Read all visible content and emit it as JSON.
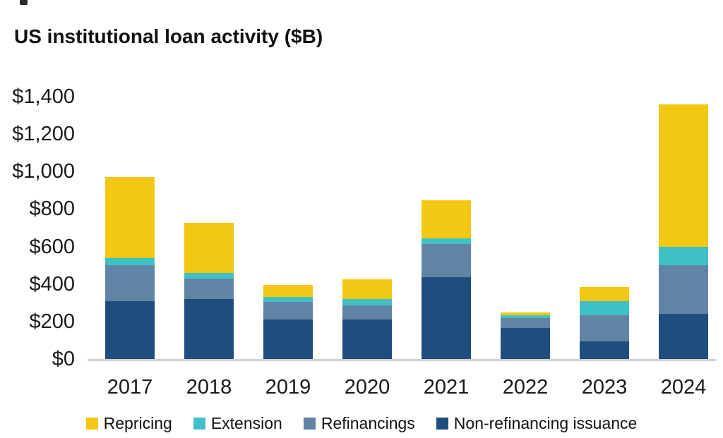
{
  "title": "US institutional loan activity ($B)",
  "colors": {
    "repricing": "#F3C813",
    "extension": "#40C1C8",
    "refinancings": "#6184A5",
    "non_refinancing_issuance": "#1F4E7E",
    "axis_line": "#D2D2D2",
    "text": "#1A1A1A"
  },
  "chart_data": {
    "type": "bar",
    "stacked": true,
    "title": "US institutional loan activity ($B)",
    "xlabel": "",
    "ylabel": "",
    "grid": false,
    "legend_position": "bottom",
    "categories": [
      "2017",
      "2018",
      "2019",
      "2020",
      "2021",
      "2022",
      "2023",
      "2024"
    ],
    "series": [
      {
        "name": "Non-refinancing issuance",
        "color": "#1F4E7E",
        "values": [
          310,
          320,
          210,
          210,
          435,
          165,
          95,
          240
        ]
      },
      {
        "name": "Refinancings",
        "color": "#6184A5",
        "values": [
          190,
          110,
          95,
          75,
          180,
          55,
          140,
          260
        ]
      },
      {
        "name": "Extension",
        "color": "#40C1C8",
        "values": [
          40,
          30,
          25,
          35,
          30,
          15,
          75,
          100
        ]
      },
      {
        "name": "Repricing",
        "color": "#F3C813",
        "values": [
          430,
          265,
          65,
          105,
          200,
          15,
          75,
          760
        ]
      }
    ],
    "totals": [
      970,
      725,
      395,
      425,
      845,
      250,
      385,
      1360
    ],
    "y_axis": {
      "min": 0,
      "max": 1400,
      "step": 200,
      "ticks": [
        {
          "value": 0,
          "label": "$0"
        },
        {
          "value": 200,
          "label": "$200"
        },
        {
          "value": 400,
          "label": "$400"
        },
        {
          "value": 600,
          "label": "$600"
        },
        {
          "value": 800,
          "label": "$800"
        },
        {
          "value": 1000,
          "label": "$1,000"
        },
        {
          "value": 1200,
          "label": "$1,200"
        },
        {
          "value": 1400,
          "label": "$1,400"
        }
      ]
    },
    "legend": [
      "Repricing",
      "Extension",
      "Refinancings",
      "Non-refinancing issuance"
    ]
  }
}
